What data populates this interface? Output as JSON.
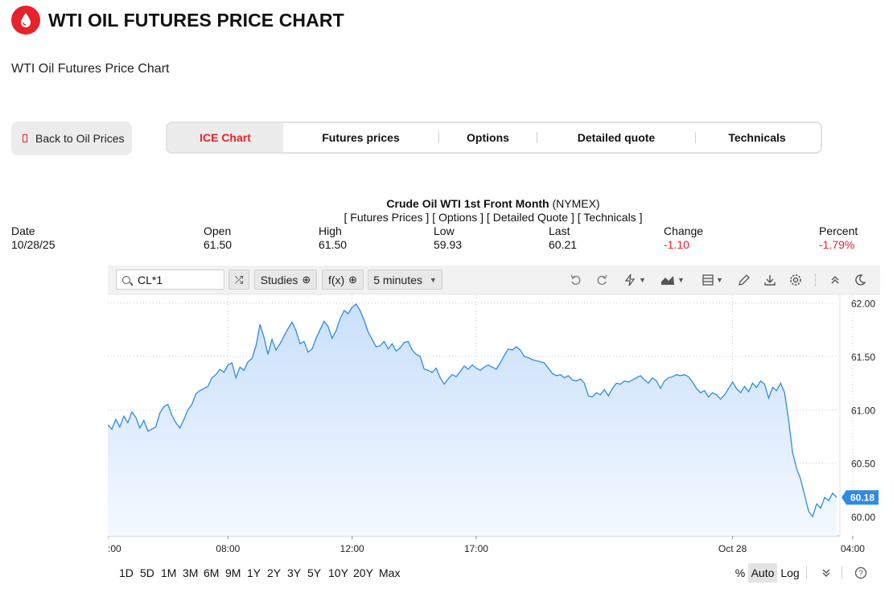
{
  "page": {
    "title": "WTI OIL FUTURES PRICE CHART",
    "subtitle": "WTI Oil Futures Price Chart",
    "brand_color": "#e8212b"
  },
  "back_button": {
    "label": "Back to Oil Prices"
  },
  "tabs": [
    {
      "label": "ICE Chart",
      "active": true
    },
    {
      "label": "Futures prices",
      "active": false
    },
    {
      "label": "Options",
      "active": false
    },
    {
      "label": "Detailed quote",
      "active": false
    },
    {
      "label": "Technicals",
      "active": false
    }
  ],
  "quote": {
    "title_bold": "Crude Oil WTI 1st Front Month",
    "title_exchange": "(NYMEX)",
    "links": [
      "Futures Prices",
      "Options",
      "Detailed Quote",
      "Technicals"
    ],
    "stats": [
      {
        "label": "Date",
        "value": "10/28/25",
        "negative": false
      },
      {
        "label": "Open",
        "value": "61.50",
        "negative": false
      },
      {
        "label": "High",
        "value": "61.50",
        "negative": false
      },
      {
        "label": "Low",
        "value": "59.93",
        "negative": false
      },
      {
        "label": "Last",
        "value": "60.21",
        "negative": false
      },
      {
        "label": "Change",
        "value": "-1.10",
        "negative": true
      },
      {
        "label": "Percent",
        "value": "-1.79%",
        "negative": true
      }
    ]
  },
  "toolbar": {
    "symbol": "CL*1",
    "studies_label": "Studies",
    "fx_label": "f(x)",
    "interval_label": "5 minutes",
    "icons": [
      "compare-icon",
      "undo-icon",
      "redo-icon",
      "events-icon",
      "chart-type-icon",
      "layout-icon",
      "draw-icon",
      "download-icon",
      "settings-icon",
      "collapse-icon",
      "dark-mode-icon"
    ]
  },
  "range_buttons": [
    "1D",
    "5D",
    "1M",
    "3M",
    "6M",
    "9M",
    "1Y",
    "2Y",
    "3Y",
    "5Y",
    "10Y",
    "20Y",
    "Max"
  ],
  "scale_buttons": {
    "percent": "%",
    "auto": "Auto",
    "log": "Log"
  },
  "colors": {
    "line": "#2e8ae6",
    "fill_top": "#c9e0fb",
    "fill_bottom": "#f4f9ff",
    "last_badge": "#2e8ae6",
    "negative": "#e8212b"
  },
  "chart_data": {
    "type": "area",
    "title": "Crude Oil WTI 1st Front Month (NYMEX)",
    "interval": "5 minutes",
    "x_tick_labels": [
      ":00",
      "08:00",
      "12:00",
      "17:00",
      "Oct 28",
      "04:00"
    ],
    "y_ticks": [
      60.0,
      60.5,
      61.0,
      61.5,
      62.0
    ],
    "y_tick_labels": [
      "60.00",
      "60.50",
      "61.00",
      "61.50",
      "62.00"
    ],
    "ylim": [
      59.82,
      62.08
    ],
    "last_value_label": "60.18",
    "grid": true,
    "series": [
      {
        "values": [
          60.86,
          60.82,
          60.91,
          60.84,
          60.94,
          60.88,
          60.98,
          60.93,
          60.83,
          60.9,
          60.8,
          60.82,
          60.84,
          60.97,
          61.03,
          61.05,
          60.95,
          60.88,
          60.83,
          60.91,
          61.0,
          61.05,
          61.15,
          61.18,
          61.2,
          61.22,
          61.3,
          61.33,
          61.38,
          61.35,
          61.42,
          61.44,
          61.3,
          61.4,
          61.37,
          61.45,
          61.48,
          61.6,
          61.8,
          61.68,
          61.52,
          61.66,
          61.56,
          61.62,
          61.69,
          61.76,
          61.82,
          61.74,
          61.62,
          61.64,
          61.54,
          61.57,
          61.67,
          61.75,
          61.83,
          61.78,
          61.67,
          61.74,
          61.85,
          61.93,
          61.9,
          61.96,
          61.99,
          61.93,
          61.84,
          61.73,
          61.66,
          61.59,
          61.6,
          61.64,
          61.57,
          61.62,
          61.55,
          61.58,
          61.63,
          61.64,
          61.56,
          61.52,
          61.5,
          61.38,
          61.37,
          61.35,
          61.39,
          61.3,
          61.24,
          61.29,
          61.33,
          61.31,
          61.36,
          61.41,
          61.38,
          61.42,
          61.39,
          61.37,
          61.4,
          61.42,
          61.4,
          61.38,
          61.44,
          61.51,
          61.57,
          61.56,
          61.59,
          61.56,
          61.5,
          61.49,
          61.47,
          61.46,
          61.45,
          61.44,
          61.39,
          61.34,
          61.32,
          61.33,
          61.3,
          61.32,
          61.28,
          61.27,
          61.29,
          61.25,
          61.13,
          61.12,
          61.16,
          61.14,
          61.19,
          61.13,
          61.2,
          61.25,
          61.24,
          61.27,
          61.26,
          61.28,
          61.3,
          61.32,
          61.28,
          61.25,
          61.3,
          61.27,
          61.2,
          61.27,
          61.3,
          61.31,
          61.33,
          61.32,
          61.33,
          61.31,
          61.26,
          61.2,
          61.16,
          61.18,
          61.12,
          61.16,
          61.14,
          61.1,
          61.14,
          61.2,
          61.26,
          61.2,
          61.16,
          61.22,
          61.17,
          61.25,
          61.21,
          61.27,
          61.24,
          61.11,
          61.21,
          61.18,
          61.25,
          61.16,
          60.9,
          60.6,
          60.45,
          60.35,
          60.2,
          60.05,
          60.0,
          60.12,
          60.08,
          60.18,
          60.15,
          60.22,
          60.18
        ]
      }
    ]
  }
}
